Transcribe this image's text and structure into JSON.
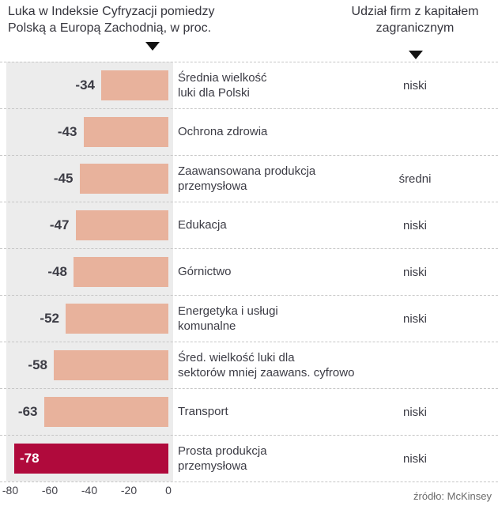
{
  "header": {
    "left_title": "Luka w Indeksie Cyfryzacji pomiedzy\nPolską a Europą Zachodnią, w proc.",
    "right_title": "Udział firm z kapitałem\nzagranicznym"
  },
  "source": "źródło: McKinsey",
  "colors": {
    "bar": "#e8b29c",
    "bar_highlight": "#b00a3c",
    "panel": "#ececec",
    "grid": "#c6c6c6",
    "text": "#3c3c45"
  },
  "chart_data": {
    "type": "bar",
    "orientation": "horizontal",
    "title": "Luka w Indeksie Cyfryzacji pomiedzy Polską a Europą Zachodnią, w proc.",
    "secondary_column_title": "Udział firm z kapitałem zagranicznym",
    "xlim": [
      -80,
      0
    ],
    "x_ticks": [
      -80,
      -60,
      -40,
      -20,
      0
    ],
    "rows": [
      {
        "value": -34,
        "label": "Średnia wielkość\nluki dla Polski",
        "foreign_capital": "niski",
        "highlight": false
      },
      {
        "value": -43,
        "label": "Ochrona zdrowia",
        "foreign_capital": "",
        "highlight": false
      },
      {
        "value": -45,
        "label": "Zaawansowana produkcja\nprzemysłowa",
        "foreign_capital": "średni",
        "highlight": false
      },
      {
        "value": -47,
        "label": "Edukacja",
        "foreign_capital": "niski",
        "highlight": false
      },
      {
        "value": -48,
        "label": "Górnictwo",
        "foreign_capital": "niski",
        "highlight": false
      },
      {
        "value": -52,
        "label": "Energetyka i usługi\nkomunalne",
        "foreign_capital": "niski",
        "highlight": false
      },
      {
        "value": -58,
        "label": "Śred. wielkość luki dla\nsektorów mniej zaawans. cyfrowo",
        "foreign_capital": "",
        "highlight": false
      },
      {
        "value": -63,
        "label": "Transport",
        "foreign_capital": "niski",
        "highlight": false
      },
      {
        "value": -78,
        "label": "Prosta produkcja\nprzemysłowa",
        "foreign_capital": "niski",
        "highlight": true
      }
    ],
    "source": "źródło: McKinsey"
  }
}
